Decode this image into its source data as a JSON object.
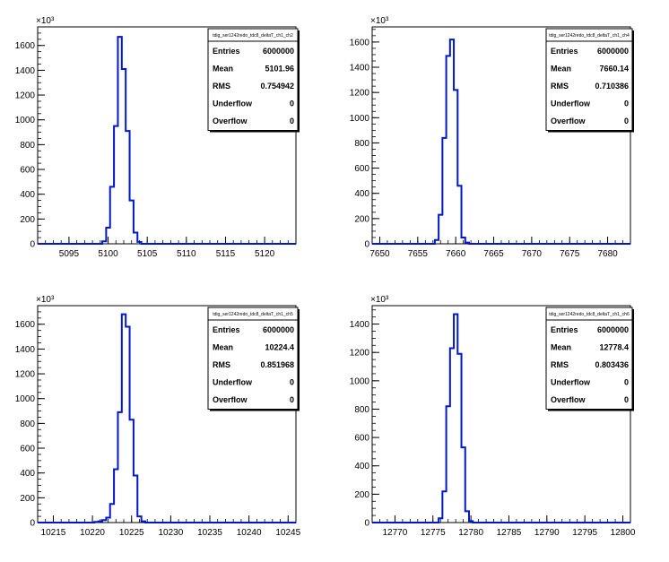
{
  "chart_data": [
    {
      "type": "histogram",
      "stats_title": "tdig_ser1242redo_tdc8_deltaT_ch1_ch2",
      "stats": [
        {
          "label": "Entries",
          "value": "6000000"
        },
        {
          "label": "Mean",
          "value": "5101.96"
        },
        {
          "label": "RMS",
          "value": "0.754942"
        },
        {
          "label": "Underflow",
          "value": "0"
        },
        {
          "label": "Overflow",
          "value": "0"
        }
      ],
      "y_multiplier": "×10³",
      "xlim": [
        5091,
        5124
      ],
      "ylim": [
        0,
        1750
      ],
      "xticks": [
        5095,
        5100,
        5105,
        5110,
        5115,
        5120
      ],
      "yticks": [
        0,
        200,
        400,
        600,
        800,
        1000,
        1200,
        1400,
        1600
      ],
      "bins": [
        {
          "x": 5099.5,
          "y": 20
        },
        {
          "x": 5100.0,
          "y": 130
        },
        {
          "x": 5100.5,
          "y": 460
        },
        {
          "x": 5101.0,
          "y": 950
        },
        {
          "x": 5101.5,
          "y": 1670
        },
        {
          "x": 5102.0,
          "y": 1410
        },
        {
          "x": 5102.5,
          "y": 910
        },
        {
          "x": 5103.0,
          "y": 350
        },
        {
          "x": 5103.5,
          "y": 90
        },
        {
          "x": 5104.0,
          "y": 15
        }
      ],
      "bin_width": 0.5
    },
    {
      "type": "histogram",
      "stats_title": "tdig_ser1242redo_tdc8_deltaT_ch1_ch4",
      "stats": [
        {
          "label": "Entries",
          "value": "6000000"
        },
        {
          "label": "Mean",
          "value": "7660.14"
        },
        {
          "label": "RMS",
          "value": "0.710386"
        },
        {
          "label": "Underflow",
          "value": "0"
        },
        {
          "label": "Overflow",
          "value": "0"
        }
      ],
      "y_multiplier": "×10³",
      "xlim": [
        7649,
        7683
      ],
      "ylim": [
        0,
        1720
      ],
      "xticks": [
        7650,
        7655,
        7660,
        7665,
        7670,
        7675,
        7680
      ],
      "yticks": [
        0,
        200,
        400,
        600,
        800,
        1000,
        1200,
        1400,
        1600
      ],
      "bins": [
        {
          "x": 7657.5,
          "y": 30
        },
        {
          "x": 7658.0,
          "y": 230
        },
        {
          "x": 7658.5,
          "y": 840
        },
        {
          "x": 7659.0,
          "y": 1490
        },
        {
          "x": 7659.5,
          "y": 1620
        },
        {
          "x": 7660.0,
          "y": 1220
        },
        {
          "x": 7660.5,
          "y": 460
        },
        {
          "x": 7661.0,
          "y": 50
        },
        {
          "x": 7661.5,
          "y": 10
        }
      ],
      "bin_width": 0.5
    },
    {
      "type": "histogram",
      "stats_title": "tdig_ser1242redo_tdc8_deltaT_ch1_ch5",
      "stats": [
        {
          "label": "Entries",
          "value": "6000000"
        },
        {
          "label": "Mean",
          "value": "10224.4"
        },
        {
          "label": "RMS",
          "value": "0.851968"
        },
        {
          "label": "Underflow",
          "value": "0"
        },
        {
          "label": "Overflow",
          "value": "0"
        }
      ],
      "y_multiplier": "×10³",
      "xlim": [
        10213,
        10246
      ],
      "ylim": [
        0,
        1750
      ],
      "xticks": [
        10215,
        10220,
        10225,
        10230,
        10235,
        10240,
        10245
      ],
      "yticks": [
        0,
        200,
        400,
        600,
        800,
        1000,
        1200,
        1400,
        1600
      ],
      "bins": [
        {
          "x": 10220.5,
          "y": 5
        },
        {
          "x": 10221.0,
          "y": 10
        },
        {
          "x": 10221.5,
          "y": 20
        },
        {
          "x": 10222.0,
          "y": 40
        },
        {
          "x": 10222.5,
          "y": 150
        },
        {
          "x": 10223.0,
          "y": 430
        },
        {
          "x": 10223.5,
          "y": 890
        },
        {
          "x": 10224.0,
          "y": 1680
        },
        {
          "x": 10224.5,
          "y": 1580
        },
        {
          "x": 10225.0,
          "y": 830
        },
        {
          "x": 10225.5,
          "y": 380
        },
        {
          "x": 10226.0,
          "y": 50
        },
        {
          "x": 10226.5,
          "y": 10
        }
      ],
      "bin_width": 0.5
    },
    {
      "type": "histogram",
      "stats_title": "tdig_ser1242redo_tdc8_deltaT_ch1_ch6",
      "stats": [
        {
          "label": "Entries",
          "value": "6000000"
        },
        {
          "label": "Mean",
          "value": "12778.4"
        },
        {
          "label": "RMS",
          "value": "0.803436"
        },
        {
          "label": "Underflow",
          "value": "0"
        },
        {
          "label": "Overflow",
          "value": "0"
        }
      ],
      "y_multiplier": "×10³",
      "xlim": [
        12767,
        12801
      ],
      "ylim": [
        0,
        1530
      ],
      "xticks": [
        12770,
        12775,
        12780,
        12785,
        12790,
        12795,
        12800
      ],
      "yticks": [
        0,
        200,
        400,
        600,
        800,
        1000,
        1200,
        1400
      ],
      "bins": [
        {
          "x": 12776.0,
          "y": 30
        },
        {
          "x": 12776.5,
          "y": 220
        },
        {
          "x": 12777.0,
          "y": 820
        },
        {
          "x": 12777.5,
          "y": 1230
        },
        {
          "x": 12778.0,
          "y": 1470
        },
        {
          "x": 12778.5,
          "y": 1190
        },
        {
          "x": 12779.0,
          "y": 530
        },
        {
          "x": 12779.5,
          "y": 80
        },
        {
          "x": 12780.0,
          "y": 10
        }
      ],
      "bin_width": 0.5
    }
  ]
}
